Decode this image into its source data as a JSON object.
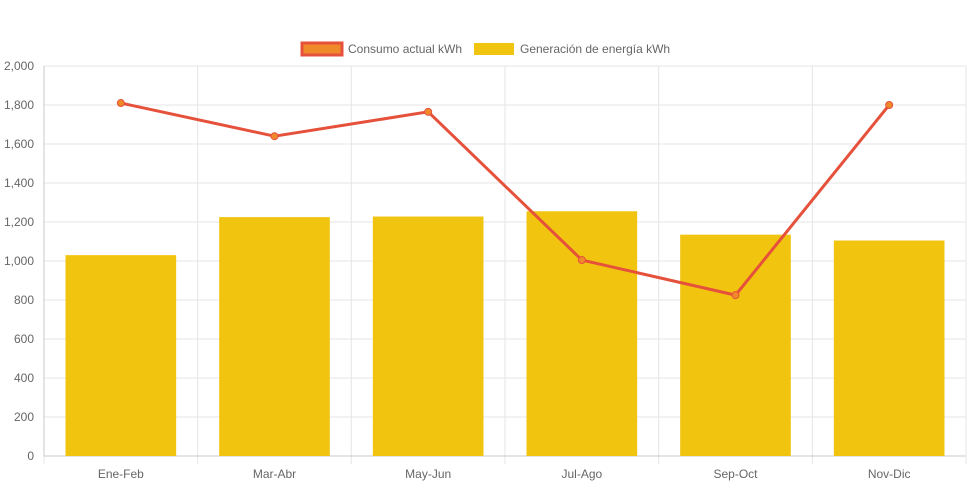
{
  "chart_data": {
    "type": "bar",
    "categories": [
      "Ene-Feb",
      "Mar-Abr",
      "May-Jun",
      "Jul-Ago",
      "Sep-Oct",
      "Nov-Dic"
    ],
    "y_tick_labels": [
      "0",
      "200",
      "400",
      "600",
      "800",
      "1,000",
      "1,200",
      "1,400",
      "1,600",
      "1,800",
      "2,000"
    ],
    "ylim": [
      0,
      2000
    ],
    "grid": true,
    "legend_position": "top-center",
    "series": [
      {
        "name": "Consumo actual kWh",
        "type": "line",
        "color": "#e5513b",
        "fill": "#f0892a",
        "values": [
          1810,
          1640,
          1765,
          1005,
          825,
          1800
        ]
      },
      {
        "name": "Generación de energía kWh",
        "type": "bar",
        "color": "#f1c40f",
        "values": [
          1030,
          1225,
          1228,
          1255,
          1135,
          1105
        ]
      }
    ]
  }
}
